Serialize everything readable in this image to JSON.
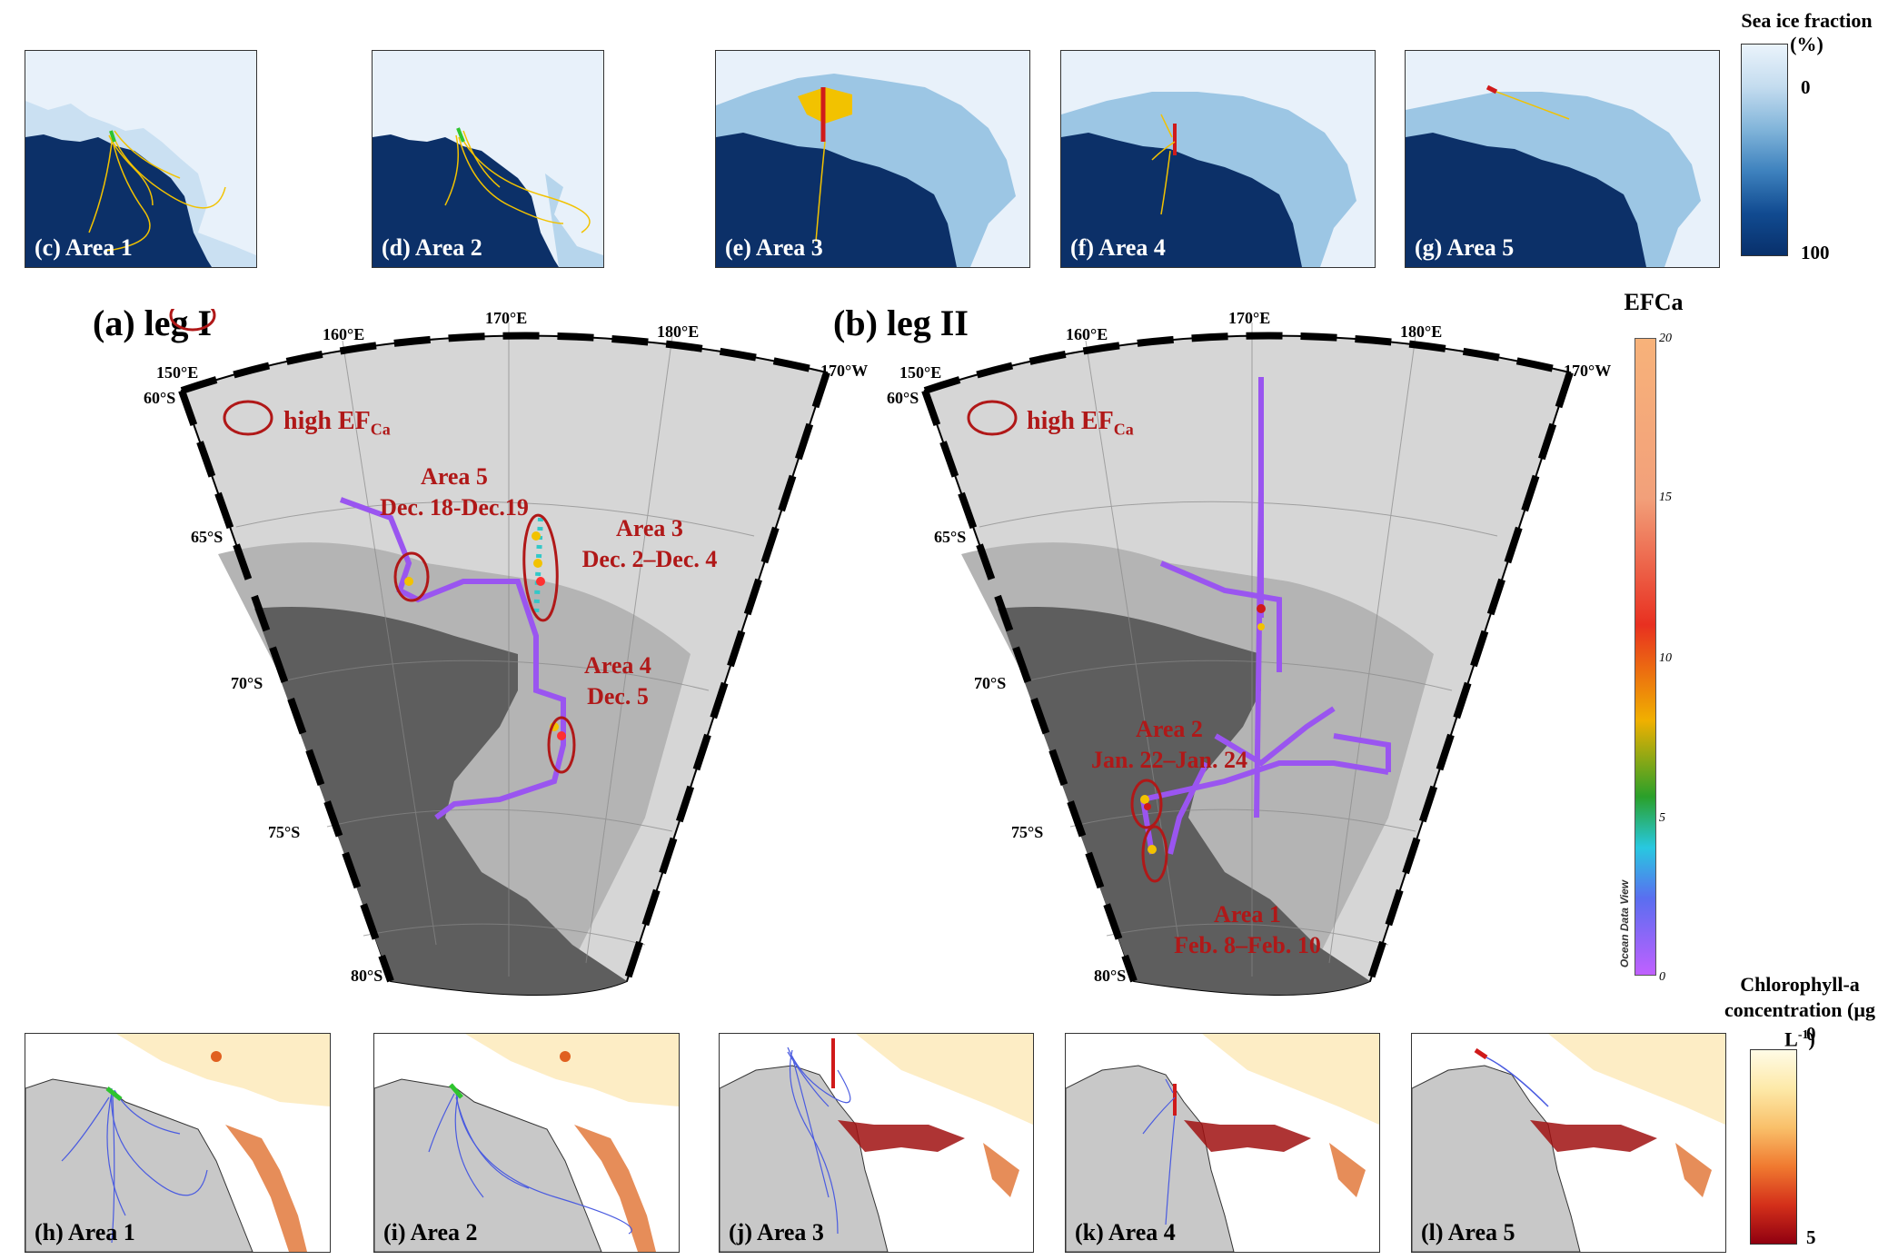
{
  "top_panels": [
    {
      "label": "(c) Area 1"
    },
    {
      "label": "(d) Area 2"
    },
    {
      "label": "(e) Area 3"
    },
    {
      "label": "(f) Area 4"
    },
    {
      "label": "(g) Area 5"
    }
  ],
  "bottom_panels": [
    {
      "label": "(h) Area 1"
    },
    {
      "label": "(i) Area 2"
    },
    {
      "label": "(j) Area 3"
    },
    {
      "label": "(k) Area 4"
    },
    {
      "label": "(l) Area 5"
    }
  ],
  "sea_ice_colorbar": {
    "title": "Sea ice fraction (%)",
    "min": "0",
    "max": "100"
  },
  "chl_colorbar": {
    "title_line1": "Chlorophyll-a",
    "title_line2": "concentration (µg L",
    "title_sup": "-1",
    "title_close": ")",
    "min": "0",
    "max": "5"
  },
  "efca_colorbar": {
    "title": "EFCa",
    "ticks": [
      "20",
      "15",
      "10",
      "5",
      "0"
    ],
    "credit": "Ocean Data View"
  },
  "map_a": {
    "title": "(a) leg I",
    "lon_labels": [
      "150°E",
      "160°E",
      "170°E",
      "180°E",
      "170°W"
    ],
    "lat_labels": [
      "60°S",
      "65°S",
      "70°S",
      "75°S",
      "80°S"
    ],
    "legend_text": "high EF",
    "legend_sub": "Ca",
    "areas": [
      {
        "line1": "Area 5",
        "line2": "Dec. 18-Dec.19"
      },
      {
        "line1": "Area 3",
        "line2": "Dec. 2–Dec. 4"
      },
      {
        "line1": "Area 4",
        "line2": "Dec. 5"
      }
    ]
  },
  "map_b": {
    "title": "(b) leg II",
    "lon_labels": [
      "150°E",
      "160°E",
      "170°E",
      "180°E",
      "170°W"
    ],
    "lat_labels": [
      "60°S",
      "65°S",
      "70°S",
      "75°S",
      "80°S"
    ],
    "legend_text": "high EF",
    "legend_sub": "Ca",
    "areas": [
      {
        "line1": "Area 2",
        "line2": "Jan. 22–Jan. 24"
      },
      {
        "line1": "Area 1",
        "line2": "Feb. 8–Feb. 10"
      }
    ]
  },
  "colors": {
    "ocean_light": "#e8f1fa",
    "ice_medium": "#9cc6e4",
    "land_dark": "#0c3068",
    "trajectory": "#f2c200",
    "chl_land": "#c8c8c8",
    "chl_traj": "#4a5be0",
    "ellipse": "#b01818",
    "area_text": "#b01818"
  }
}
